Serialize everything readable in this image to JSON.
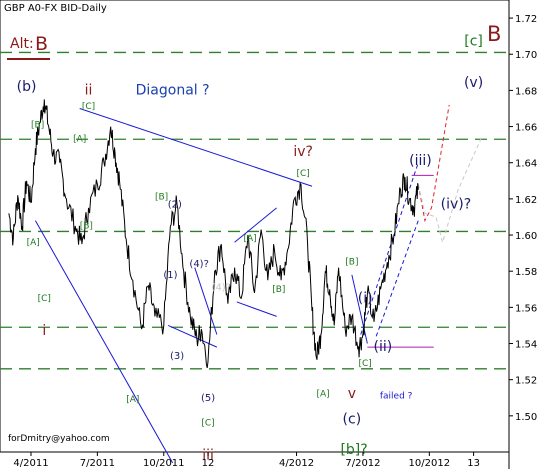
{
  "chart_title": "GBP A0-FX BID-Daily",
  "alt_label": "Alt:",
  "alt_value": "B",
  "top_right_label": "B",
  "footer_email": "forDmitry@yahoo.com",
  "colors": {
    "price": "#000000",
    "grid_dash": "#2f7f2f",
    "blue": "#1a1ad6",
    "green": "#1f7a1f",
    "dark_red": "#8b1a1a",
    "magenta": "#b21ab2",
    "red_dash": "#e0202a",
    "gray": "#c8c8c8",
    "diagonal_text": "#1a3fae",
    "wave_text": "#1a1a6a"
  },
  "chart_data": {
    "type": "line",
    "title": "GBP A0-FX BID-Daily",
    "instrument": "GBP A0-FX BID",
    "timeframe": "Daily",
    "x_ticks": [
      "4/2011",
      "7/2011",
      "10/2011",
      "12",
      "4/2012",
      "7/2012",
      "10/2012",
      "13"
    ],
    "x_tick_positions": [
      0,
      3,
      6,
      8,
      12,
      15,
      18,
      20
    ],
    "xlim": [
      -1.4,
      21.6
    ],
    "y_ticks": [
      "1.50",
      "1.52",
      "1.54",
      "1.56",
      "1.58",
      "1.60",
      "1.62",
      "1.64",
      "1.66",
      "1.68",
      "1.70",
      "1.72"
    ],
    "ylim": [
      1.48,
      1.73
    ],
    "dashed_levels": [
      1.701,
      1.653,
      1.602,
      1.549,
      1.526
    ],
    "series": [
      {
        "x": [
          -1.0,
          -0.8,
          -0.6,
          -0.4,
          -0.2,
          0.0,
          0.2,
          0.4,
          0.6,
          0.8,
          1.0,
          1.3,
          1.6,
          2.0,
          2.3,
          2.6,
          3.0,
          3.3,
          3.6,
          3.8,
          4.0,
          4.3,
          4.6,
          5.0,
          5.3,
          5.6,
          6.0,
          6.3,
          6.6,
          6.9,
          7.2,
          7.5,
          7.7,
          8.0,
          8.3,
          8.6,
          8.9,
          9.2,
          9.5,
          9.8,
          10.1,
          10.4,
          10.7,
          11.0,
          11.3,
          11.6,
          11.9,
          12.2,
          12.5,
          12.7,
          12.9,
          13.1,
          13.3,
          13.5,
          13.7,
          13.9,
          14.2,
          14.5,
          14.8,
          15.0,
          15.2,
          15.5,
          15.8,
          16.1,
          16.4,
          16.7,
          16.9,
          17.1,
          17.3,
          17.5
        ],
        "values": [
          1.612,
          1.598,
          1.622,
          1.605,
          1.63,
          1.618,
          1.648,
          1.662,
          1.675,
          1.66,
          1.645,
          1.64,
          1.62,
          1.605,
          1.595,
          1.615,
          1.628,
          1.64,
          1.66,
          1.645,
          1.63,
          1.598,
          1.575,
          1.548,
          1.572,
          1.555,
          1.55,
          1.605,
          1.617,
          1.58,
          1.555,
          1.542,
          1.548,
          1.53,
          1.58,
          1.595,
          1.562,
          1.582,
          1.565,
          1.6,
          1.568,
          1.603,
          1.575,
          1.592,
          1.575,
          1.592,
          1.62,
          1.628,
          1.595,
          1.558,
          1.532,
          1.545,
          1.58,
          1.57,
          1.55,
          1.582,
          1.548,
          1.555,
          1.538,
          1.545,
          1.568,
          1.552,
          1.57,
          1.585,
          1.6,
          1.625,
          1.632,
          1.62,
          1.615,
          1.625
        ]
      }
    ],
    "annotations": [
      {
        "text": "(b)",
        "x": -0.2,
        "y": 1.682,
        "color": "wave_text"
      },
      {
        "text": "ii",
        "x": 2.6,
        "y": 1.68,
        "color": "dark_red"
      },
      {
        "text": "Diagonal ?",
        "x": 6.4,
        "y": 1.68,
        "color": "diagonal_text"
      },
      {
        "text": "[c]",
        "x": 20.0,
        "y": 1.707,
        "color": "green"
      },
      {
        "text": "(v)",
        "x": 20.0,
        "y": 1.684,
        "color": "wave_text"
      },
      {
        "text": "iv?",
        "x": 12.3,
        "y": 1.646,
        "color": "dark_red"
      },
      {
        "text": "[C]",
        "x": 12.3,
        "y": 1.634,
        "color": "green"
      },
      {
        "text": "(iii)",
        "x": 17.6,
        "y": 1.641,
        "color": "wave_text"
      },
      {
        "text": "(iv)?",
        "x": 19.2,
        "y": 1.617,
        "color": "wave_text"
      },
      {
        "text": "[B]",
        "x": 0.3,
        "y": 1.661,
        "color": "green"
      },
      {
        "text": "[C]",
        "x": 2.6,
        "y": 1.671,
        "color": "green"
      },
      {
        "text": "[A]",
        "x": 2.2,
        "y": 1.653,
        "color": "green"
      },
      {
        "text": "[B]",
        "x": 5.9,
        "y": 1.621,
        "color": "green"
      },
      {
        "text": "(2)",
        "x": 6.5,
        "y": 1.617,
        "color": "wave_text"
      },
      {
        "text": "[B]",
        "x": 2.5,
        "y": 1.605,
        "color": "green"
      },
      {
        "text": "[A]",
        "x": 0.1,
        "y": 1.596,
        "color": "green"
      },
      {
        "text": "[A]",
        "x": 9.9,
        "y": 1.598,
        "color": "green"
      },
      {
        "text": "[B]",
        "x": 11.2,
        "y": 1.57,
        "color": "green"
      },
      {
        "text": "(4)?",
        "x": 7.6,
        "y": 1.584,
        "color": "wave_text"
      },
      {
        "text": "(1)",
        "x": 6.3,
        "y": 1.578,
        "color": "wave_text"
      },
      {
        "text": "(4)?",
        "x": 8.6,
        "y": 1.571,
        "color": "gray"
      },
      {
        "text": "[B]",
        "x": 14.5,
        "y": 1.585,
        "color": "green"
      },
      {
        "text": "(i)",
        "x": 15.1,
        "y": 1.565,
        "color": "wave_text"
      },
      {
        "text": "[C]",
        "x": 0.6,
        "y": 1.565,
        "color": "green"
      },
      {
        "text": "i",
        "x": 0.6,
        "y": 1.547,
        "color": "dark_red"
      },
      {
        "text": "(ii)",
        "x": 15.9,
        "y": 1.538,
        "color": "wave_text"
      },
      {
        "text": "(3)",
        "x": 6.6,
        "y": 1.533,
        "color": "wave_text"
      },
      {
        "text": "[C]",
        "x": 15.1,
        "y": 1.529,
        "color": "green"
      },
      {
        "text": "[A]",
        "x": 13.2,
        "y": 1.512,
        "color": "green"
      },
      {
        "text": "v",
        "x": 14.5,
        "y": 1.512,
        "color": "dark_red"
      },
      {
        "text": "failed ?",
        "x": 16.5,
        "y": 1.511,
        "color": "blue"
      },
      {
        "text": "(5)",
        "x": 8.0,
        "y": 1.51,
        "color": "wave_text"
      },
      {
        "text": "[A]",
        "x": 4.6,
        "y": 1.509,
        "color": "green"
      },
      {
        "text": "[C]",
        "x": 8.0,
        "y": 1.496,
        "color": "green"
      },
      {
        "text": "(c)",
        "x": 14.5,
        "y": 1.498,
        "color": "wave_text"
      },
      {
        "text": "[b]?",
        "x": 14.6,
        "y": 1.481,
        "color": "green"
      },
      {
        "text": "iii",
        "x": 8.0,
        "y": 1.478,
        "color": "dark_red"
      }
    ],
    "lines": [
      {
        "x1": 2.2,
        "y1": 1.67,
        "x2": 12.7,
        "y2": 1.627,
        "color": "blue",
        "dash": false
      },
      {
        "x1": 0.2,
        "y1": 1.608,
        "x2": 6.4,
        "y2": 1.474,
        "color": "blue",
        "dash": false
      },
      {
        "x1": 7.4,
        "y1": 1.582,
        "x2": 8.4,
        "y2": 1.545,
        "color": "blue",
        "dash": false
      },
      {
        "x1": 6.2,
        "y1": 1.55,
        "x2": 8.4,
        "y2": 1.538,
        "color": "blue",
        "dash": false
      },
      {
        "x1": 9.2,
        "y1": 1.596,
        "x2": 11.1,
        "y2": 1.615,
        "color": "blue",
        "dash": false
      },
      {
        "x1": 9.3,
        "y1": 1.563,
        "x2": 11.1,
        "y2": 1.555,
        "color": "blue",
        "dash": false
      },
      {
        "x1": 14.5,
        "y1": 1.578,
        "x2": 15.2,
        "y2": 1.54,
        "color": "blue",
        "dash": false
      },
      {
        "x1": 15.2,
        "y1": 1.538,
        "x2": 18.2,
        "y2": 1.538,
        "color": "magenta",
        "dash": false
      },
      {
        "x1": 17.2,
        "y1": 1.633,
        "x2": 18.2,
        "y2": 1.633,
        "color": "magenta",
        "dash": false
      },
      {
        "x1": 14.9,
        "y1": 1.545,
        "x2": 17.5,
        "y2": 1.64,
        "color": "blue",
        "dash": true
      },
      {
        "x1": 15.6,
        "y1": 1.544,
        "x2": 17.5,
        "y2": 1.608,
        "color": "blue",
        "dash": true
      }
    ],
    "paths": [
      {
        "points": [
          [
            17.5,
            1.628
          ],
          [
            17.8,
            1.608
          ],
          [
            18.1,
            1.615
          ],
          [
            18.9,
            1.672
          ]
        ],
        "color": "red_dash",
        "dash": true
      },
      {
        "points": [
          [
            17.5,
            1.628
          ],
          [
            17.8,
            1.612
          ],
          [
            18.3,
            1.61
          ],
          [
            18.6,
            1.596
          ],
          [
            19.3,
            1.625
          ],
          [
            20.4,
            1.655
          ]
        ],
        "color": "gray",
        "dash": true
      }
    ]
  }
}
